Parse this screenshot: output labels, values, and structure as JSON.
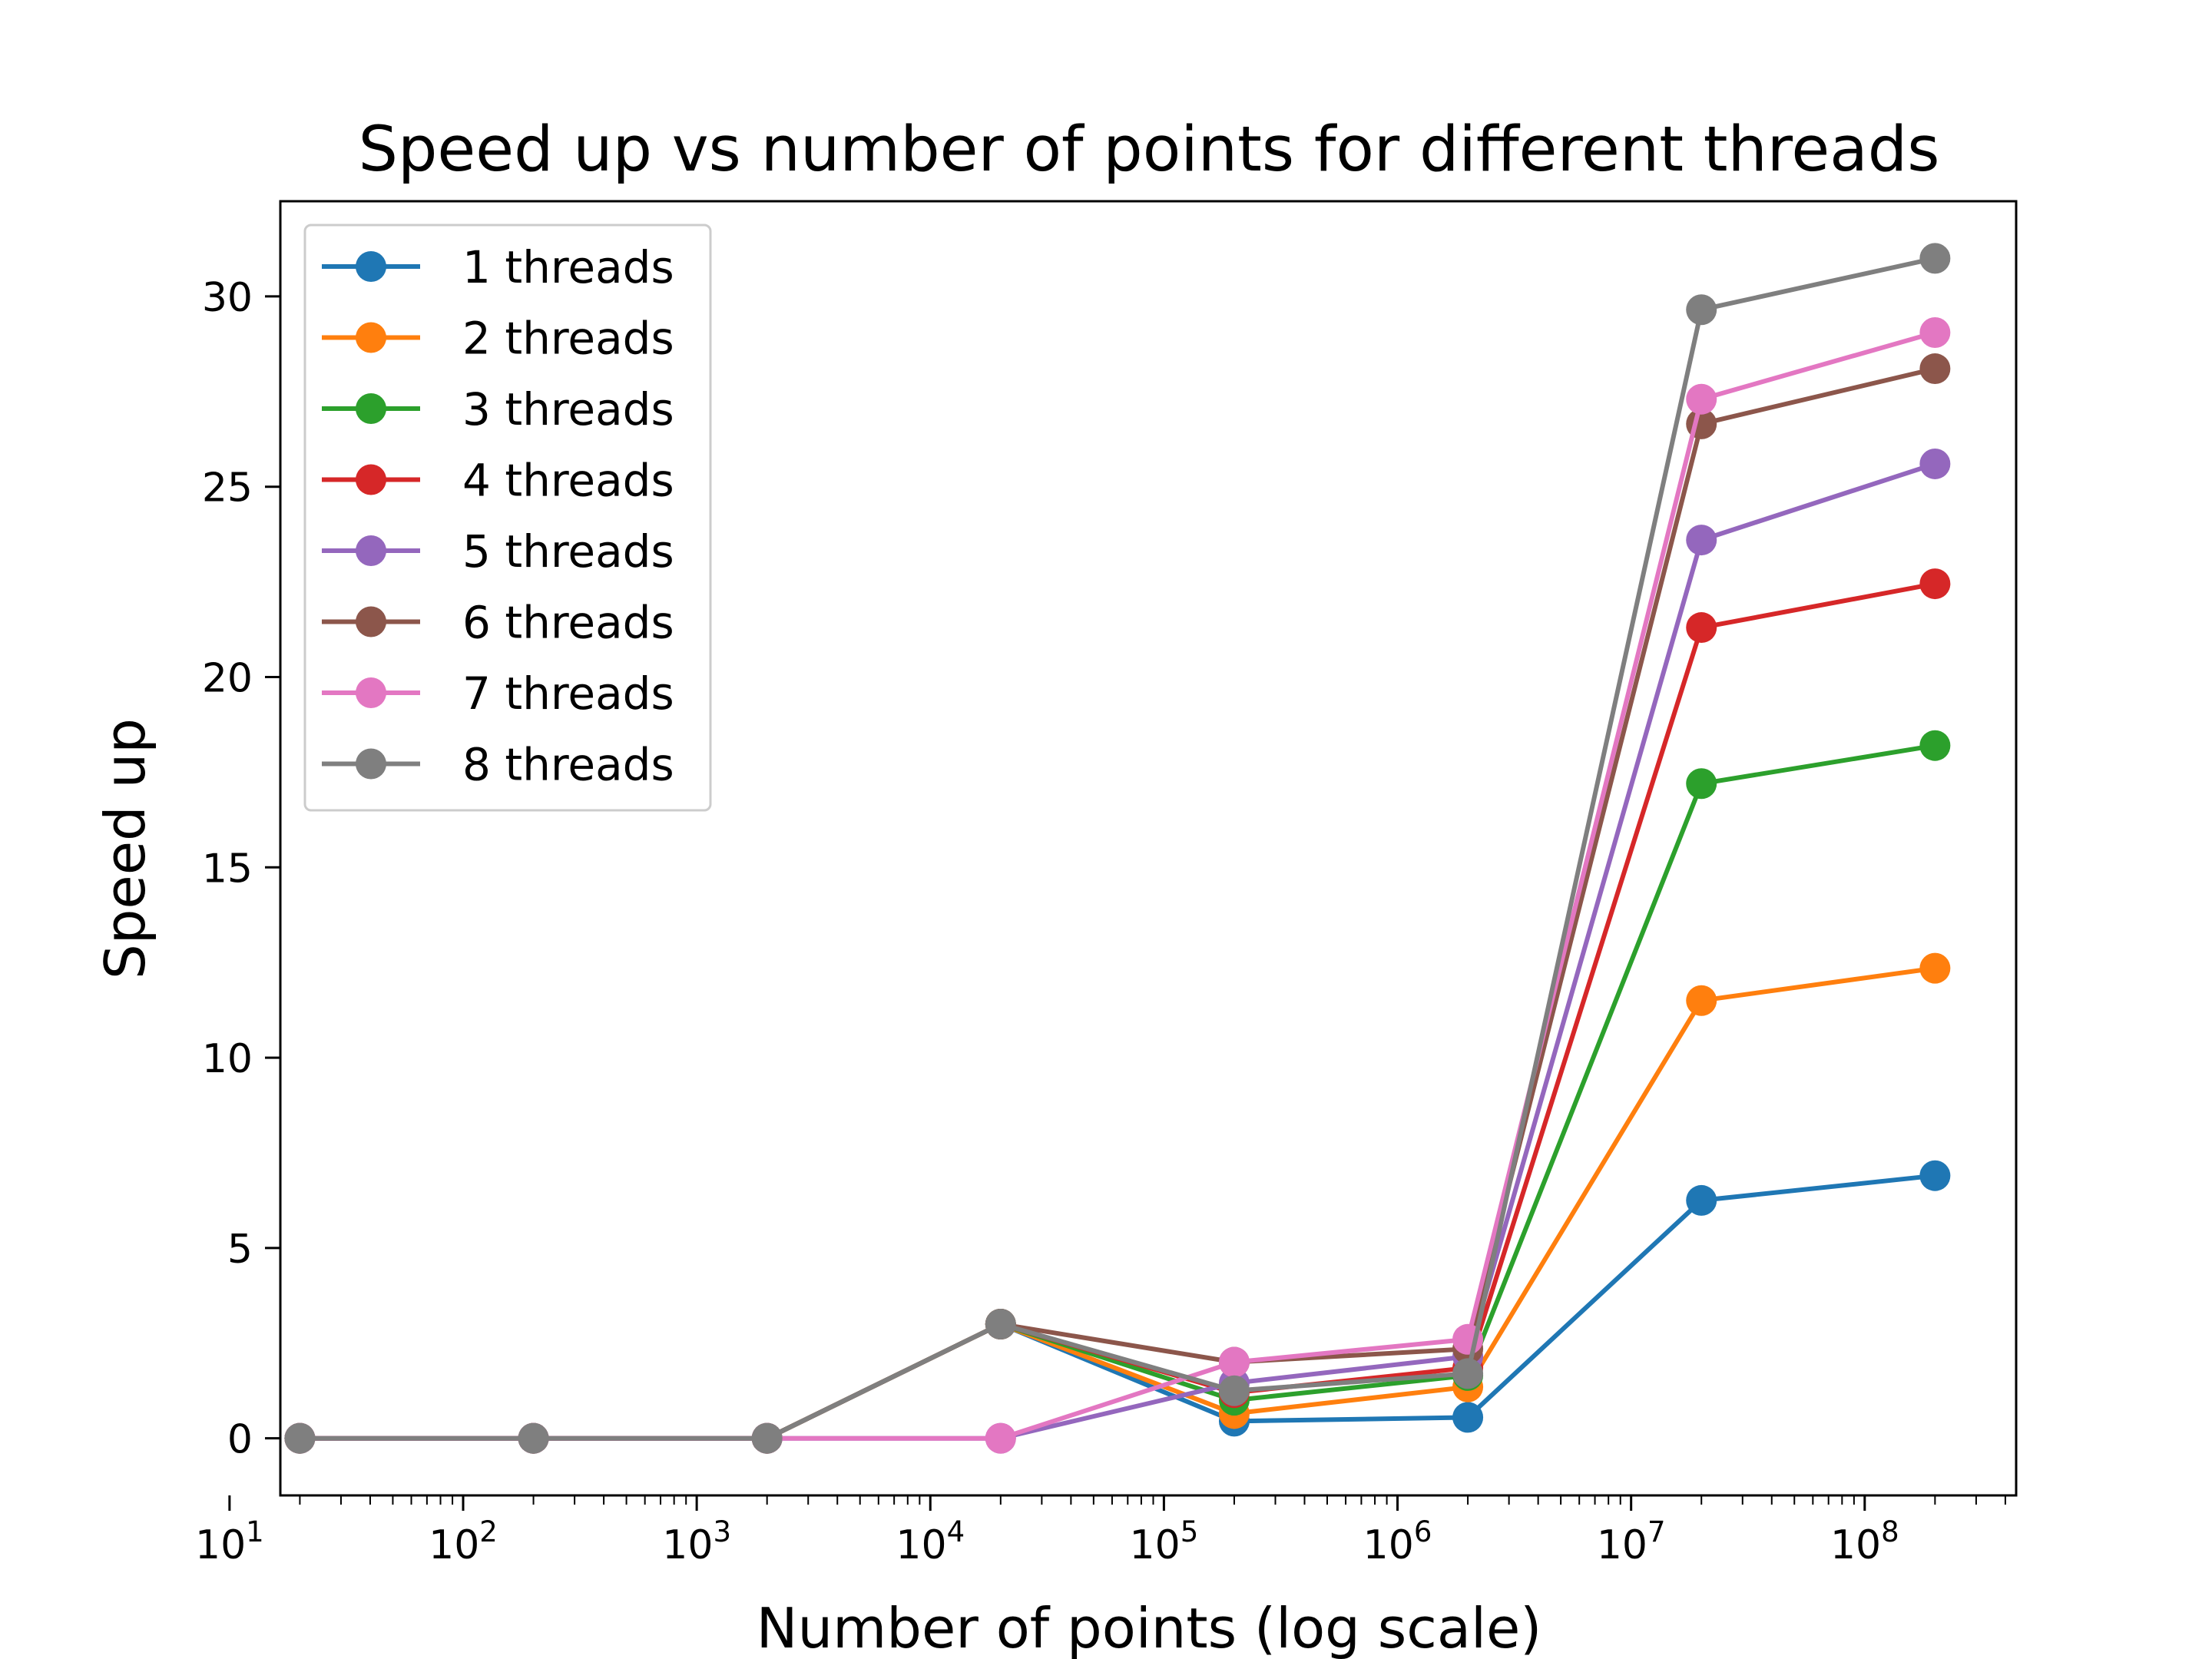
{
  "chart_data": {
    "type": "line",
    "title": "Speed up vs number of points for different threads",
    "xlabel": "Number of points (log scale)",
    "ylabel": "Speed up",
    "x_scale": "log",
    "xlim": [
      16.5,
      445000000
    ],
    "ylim": [
      -1.5,
      32.5
    ],
    "x": [
      20,
      200,
      2000,
      20000,
      200000,
      2000000,
      20000000,
      200000000
    ],
    "x_ticks": [
      {
        "value": 10,
        "base": "10",
        "exp": "1"
      },
      {
        "value": 100,
        "base": "10",
        "exp": "2"
      },
      {
        "value": 1000,
        "base": "10",
        "exp": "3"
      },
      {
        "value": 10000,
        "base": "10",
        "exp": "4"
      },
      {
        "value": 100000,
        "base": "10",
        "exp": "5"
      },
      {
        "value": 1000000,
        "base": "10",
        "exp": "6"
      },
      {
        "value": 10000000,
        "base": "10",
        "exp": "7"
      },
      {
        "value": 100000000,
        "base": "10",
        "exp": "8"
      }
    ],
    "y_ticks": [
      0,
      5,
      10,
      15,
      20,
      25,
      30
    ],
    "y_tick_labels": [
      "0",
      "5",
      "10",
      "15",
      "20",
      "25",
      "30"
    ],
    "grid": false,
    "legend_position": "top-left",
    "series": [
      {
        "name": "1 threads",
        "color": "#1f77b4",
        "values": [
          0,
          0,
          0,
          3,
          0.45,
          0.55,
          6.25,
          6.9
        ]
      },
      {
        "name": "2 threads",
        "color": "#ff7f0e",
        "values": [
          0,
          0,
          0,
          3,
          0.65,
          1.35,
          11.5,
          12.35
        ]
      },
      {
        "name": "3 threads",
        "color": "#2ca02c",
        "values": [
          0,
          0,
          0,
          3,
          1.0,
          1.65,
          17.2,
          18.2
        ]
      },
      {
        "name": "4 threads",
        "color": "#d62728",
        "values": [
          0,
          0,
          0,
          3,
          1.2,
          1.85,
          21.3,
          22.45
        ]
      },
      {
        "name": "5 threads",
        "color": "#9467bd",
        "values": [
          0,
          0,
          0,
          0,
          1.45,
          2.15,
          23.6,
          25.6
        ]
      },
      {
        "name": "6 threads",
        "color": "#8c564b",
        "values": [
          0,
          0,
          0,
          3,
          2.0,
          2.35,
          26.65,
          28.1
        ]
      },
      {
        "name": "7 threads",
        "color": "#e377c2",
        "values": [
          0,
          0,
          0,
          0,
          2.0,
          2.6,
          27.3,
          29.05
        ]
      },
      {
        "name": "8 threads",
        "color": "#7f7f7f",
        "values": [
          0,
          0,
          0,
          3,
          1.25,
          1.7,
          29.65,
          31.0
        ]
      }
    ]
  }
}
